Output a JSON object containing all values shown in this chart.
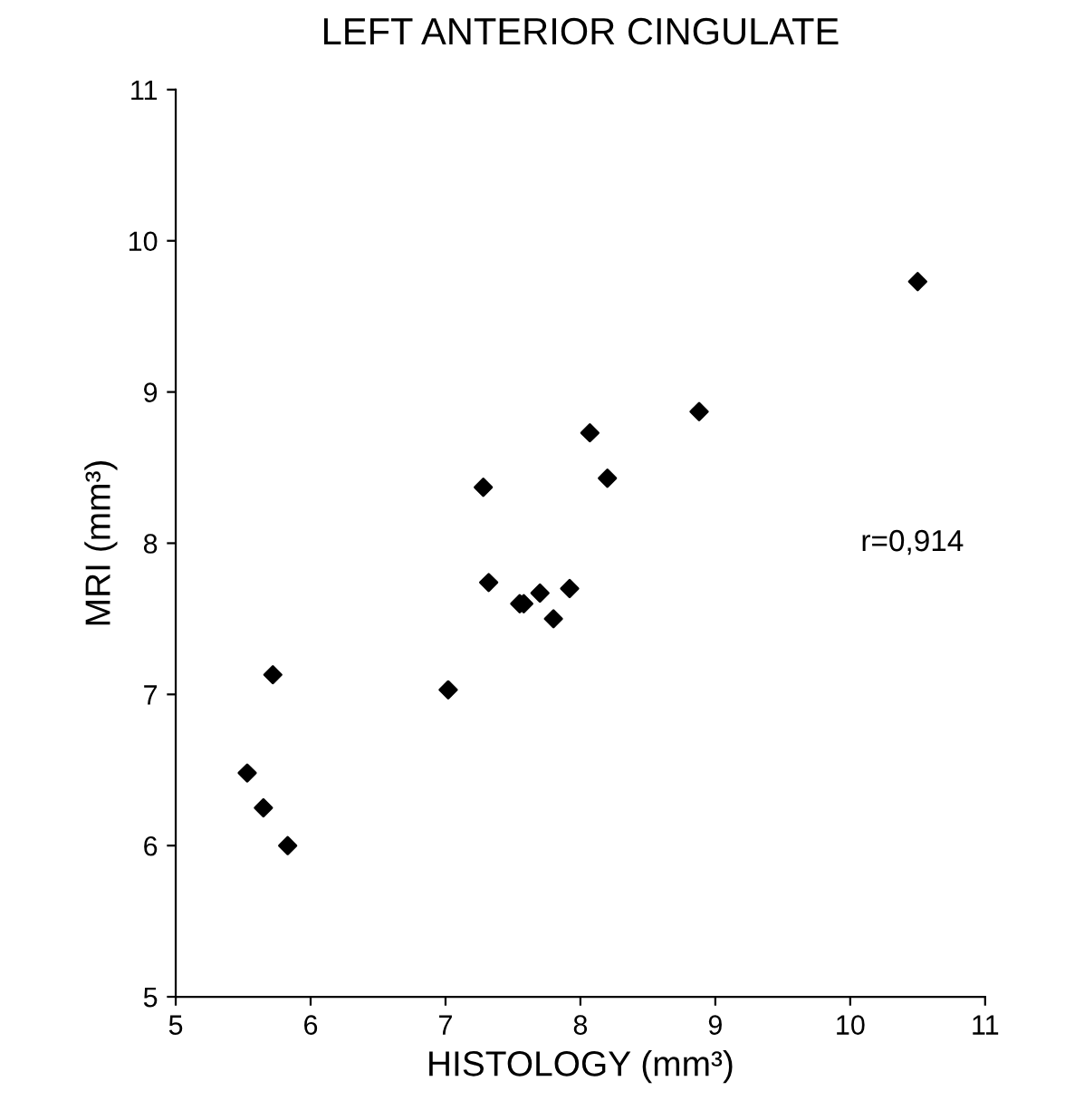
{
  "chart_data": {
    "type": "scatter",
    "title": "LEFT ANTERIOR CINGULATE",
    "xlabel": "HISTOLOGY (mm³)",
    "ylabel": "MRI (mm³)",
    "x": [
      5.53,
      5.65,
      5.72,
      5.83,
      7.02,
      7.28,
      7.32,
      7.55,
      7.58,
      7.7,
      7.8,
      7.92,
      8.07,
      8.2,
      8.88,
      10.5
    ],
    "series": [
      {
        "color": "#000000",
        "values": [
          6.48,
          6.25,
          7.13,
          6.0,
          7.03,
          8.37,
          7.74,
          7.6,
          7.6,
          7.67,
          7.5,
          7.7,
          8.73,
          8.43,
          8.87,
          9.73
        ]
      }
    ],
    "annotations": [
      "r=0,914"
    ],
    "marker": "diamond",
    "xlim": [
      5,
      11
    ],
    "ylim": [
      5,
      11
    ],
    "xticks": [
      5,
      6,
      7,
      8,
      9,
      10,
      11
    ],
    "yticks": [
      5,
      6,
      7,
      8,
      9,
      10,
      11
    ],
    "grid": false,
    "legend": false
  }
}
